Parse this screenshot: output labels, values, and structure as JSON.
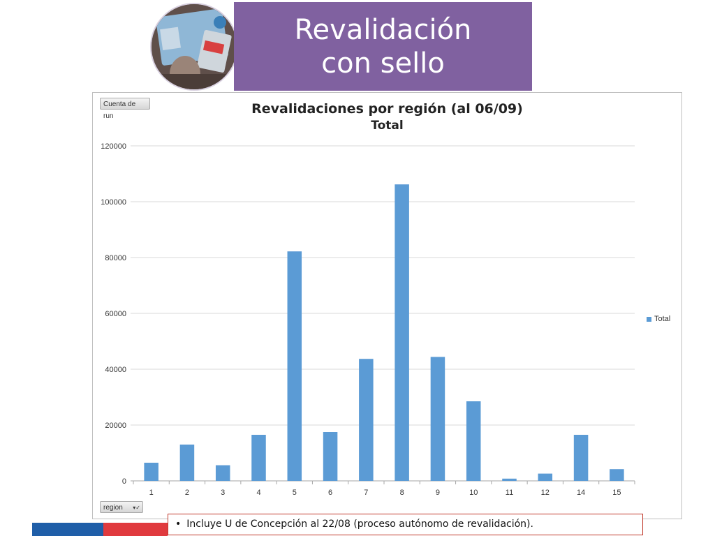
{
  "slide": {
    "title": "Revalidación con sello",
    "note": "Incluye U de Concepción al 22/08 (proceso autónomo de revalidación)."
  },
  "pivot": {
    "value_field": "Cuenta de run",
    "axis_field": "region"
  },
  "chart_data": {
    "type": "bar",
    "title": "Revalidaciones por región (al 06/09)",
    "subtitle": "Total",
    "categories": [
      "1",
      "2",
      "3",
      "4",
      "5",
      "6",
      "7",
      "8",
      "9",
      "10",
      "11",
      "12",
      "14",
      "15"
    ],
    "series": [
      {
        "name": "Total",
        "color": "#5b9bd5",
        "values": [
          6500,
          13000,
          5600,
          16500,
          82200,
          17500,
          43700,
          106200,
          44400,
          28500,
          800,
          2600,
          16500,
          4200
        ]
      }
    ],
    "ylim": [
      0,
      120000
    ],
    "yticks": [
      0,
      20000,
      40000,
      60000,
      80000,
      100000,
      120000
    ],
    "grid": true,
    "legend": "right",
    "xlabel": "",
    "ylabel": ""
  },
  "colors": {
    "banner": "#8061a0",
    "bar": "#5b9bd5",
    "flag_blue": "#1f5ea8",
    "flag_red": "#e03a3e",
    "note_border": "#c0392b"
  }
}
